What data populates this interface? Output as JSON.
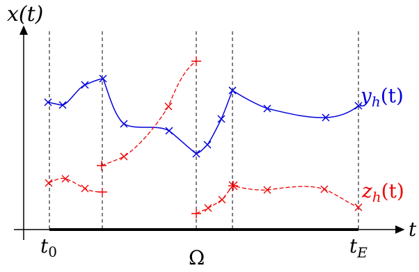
{
  "labels": {
    "y_axis": "x(t)",
    "x_axis": "t",
    "t0": "t",
    "t0_sub": "0",
    "tE": "t",
    "tE_sub": "E",
    "omega": "Ω",
    "series_y": "y",
    "series_y_sub": "h",
    "series_y_arg": "(t)",
    "series_z": "z",
    "series_z_sub": "h",
    "series_z_arg": "(t)"
  },
  "colors": {
    "axis": "#000000",
    "series_y": "#0000dd",
    "series_z": "#ee0000",
    "divider": "#000000"
  }
}
